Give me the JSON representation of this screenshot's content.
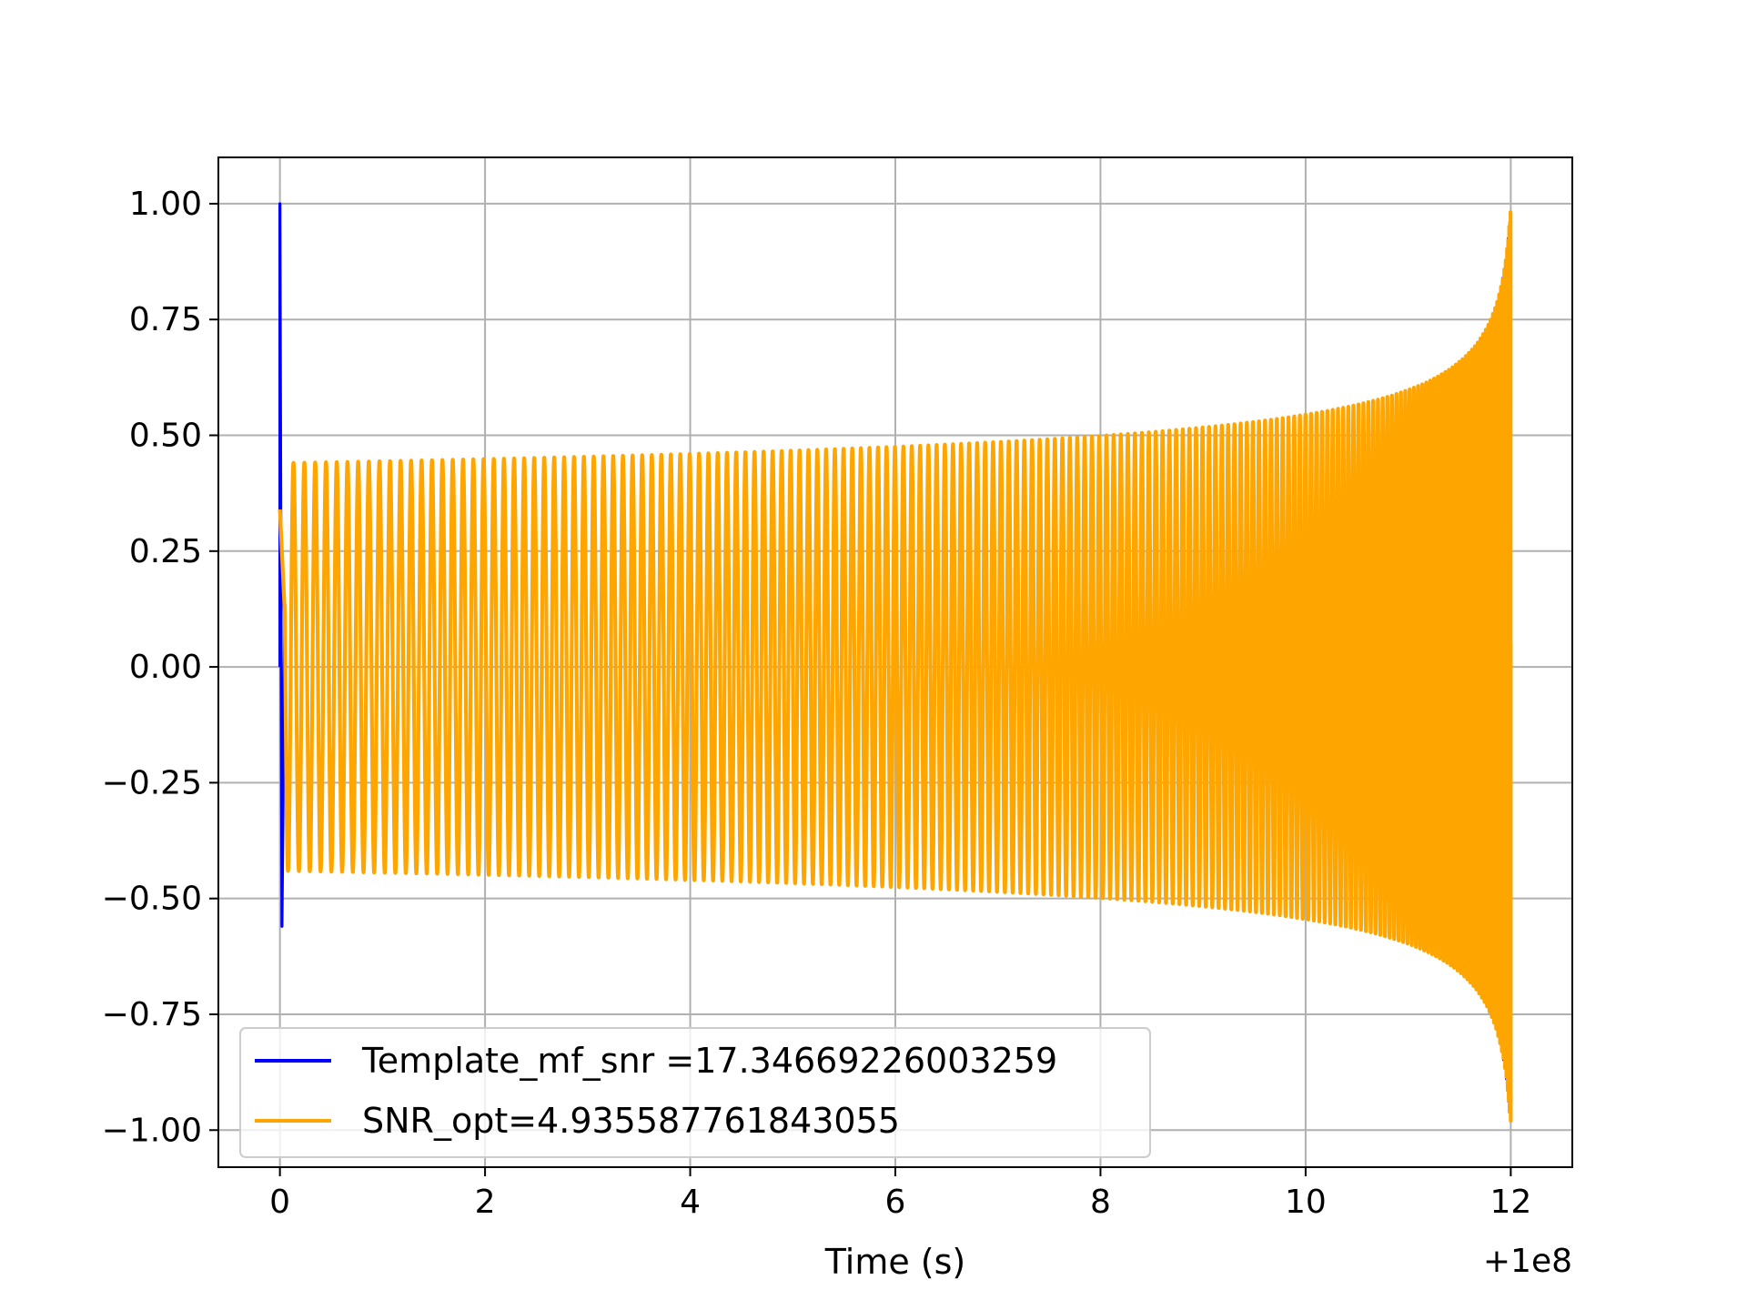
{
  "chart_data": {
    "type": "line",
    "xlabel": "Time (s)",
    "ylabel": "",
    "x_offset_label": "+1e8",
    "x_offset": 100000000,
    "xlim": [
      99999999.4,
      100000012.6
    ],
    "ylim": [
      -1.08,
      1.1
    ],
    "xticks": [
      0,
      2,
      4,
      6,
      8,
      10,
      12
    ],
    "xtick_labels": [
      "0",
      "2",
      "4",
      "6",
      "8",
      "10",
      "12"
    ],
    "yticks": [
      1.0,
      0.75,
      0.5,
      0.25,
      0.0,
      -0.25,
      -0.5,
      -0.75,
      -1.0
    ],
    "ytick_labels": [
      "1.00",
      "0.75",
      "0.50",
      "0.25",
      "0.00",
      "−0.25",
      "−0.50",
      "−0.75",
      "−1.00"
    ],
    "grid": true,
    "legend_position": "lower-left",
    "series": [
      {
        "name": "Template_mf_snr =17.34669226003259",
        "color": "#0000ff",
        "style": "chirp",
        "t_start": 0.0,
        "t_end": 12.0,
        "initial_spike": [
          1.0,
          -0.56
        ],
        "amplitude_start": 0.44,
        "amplitude_mid": 0.5,
        "amplitude_end": 1.0,
        "cycles": 180
      },
      {
        "name": "SNR_opt=4.935587761843055",
        "color": "#ffa500",
        "style": "chirp",
        "t_start": 0.0,
        "t_end": 12.0,
        "initial_value": 0.34,
        "amplitude_start": 0.44,
        "amplitude_mid": 0.5,
        "amplitude_end": 1.0,
        "cycles": 180
      }
    ]
  }
}
